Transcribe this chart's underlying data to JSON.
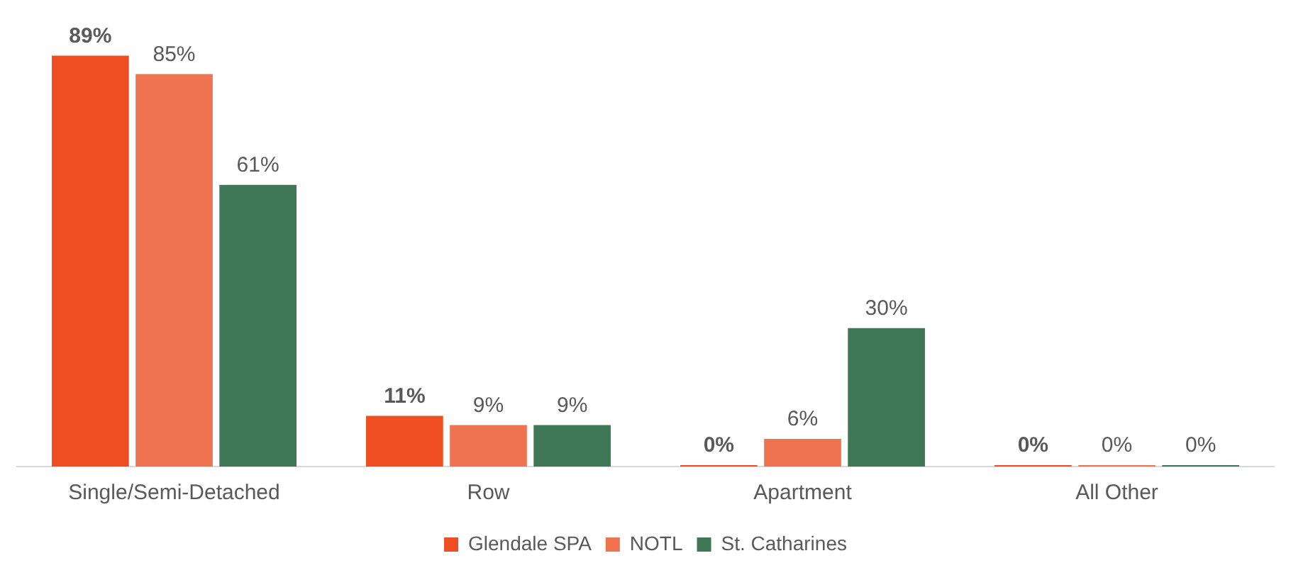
{
  "chart_data": {
    "type": "bar",
    "categories": [
      "Single/Semi-Detached",
      "Row",
      "Apartment",
      "All Other"
    ],
    "series": [
      {
        "name": "Glendale SPA",
        "color": "#ef4e23",
        "values": [
          89,
          11,
          0,
          0
        ],
        "value_labels": [
          "89%",
          "11%",
          "0%",
          "0%"
        ]
      },
      {
        "name": "NOTL",
        "color": "#f07350",
        "values": [
          85,
          9,
          6,
          0
        ],
        "value_labels": [
          "85%",
          "9%",
          "6%",
          "0%"
        ]
      },
      {
        "name": "St. Catharines",
        "color": "#3f7857",
        "values": [
          61,
          9,
          30,
          0
        ],
        "value_labels": [
          "61%",
          "9%",
          "30%",
          "0%"
        ]
      }
    ],
    "grid": false,
    "legend": "bottom"
  }
}
